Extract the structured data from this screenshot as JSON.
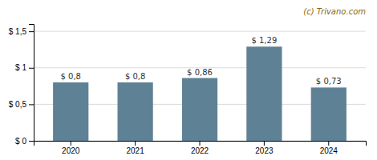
{
  "chart_data": {
    "type": "bar",
    "categories": [
      "2020",
      "2021",
      "2022",
      "2023",
      "2024"
    ],
    "values": [
      0.8,
      0.8,
      0.86,
      1.29,
      0.73
    ],
    "value_labels": [
      "$ 0,8",
      "$ 0,8",
      "$ 0,86",
      "$ 1,29",
      "$ 0,73"
    ],
    "data_labels": true,
    "color": "#5f8195",
    "ylim": [
      0,
      1.6
    ],
    "yticks": [
      {
        "value": 0,
        "label": "$ 0"
      },
      {
        "value": 0.5,
        "label": "$ 0,5"
      },
      {
        "value": 1.0,
        "label": "$ 1"
      },
      {
        "value": 1.5,
        "label": "$ 1,5"
      }
    ],
    "grid": true,
    "annotations": [
      {
        "text": "(c) Trivano.com",
        "color": "#8B6914"
      }
    ]
  }
}
